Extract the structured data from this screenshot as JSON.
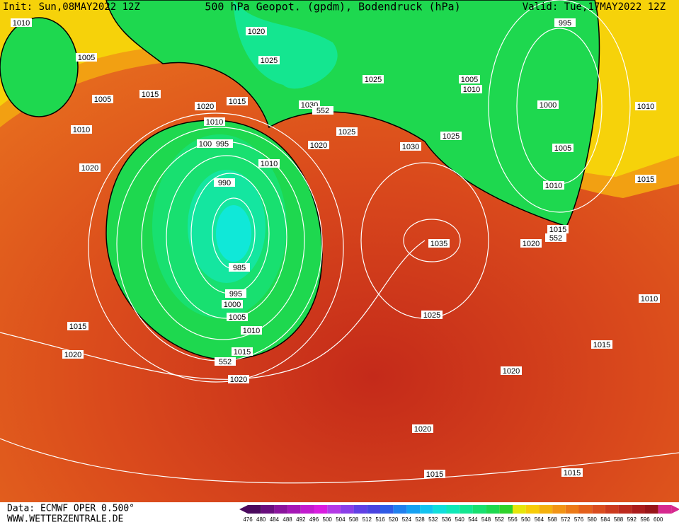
{
  "header": {
    "init": "Init: Sun,08MAY2022 12Z",
    "title": "500 hPa Geopot. (gpdm), Bodendruck (hPa)",
    "valid": "Valid: Tue,17MAY2022 12Z"
  },
  "isobar_labels": [
    "1010",
    "1005",
    "1005",
    "1015",
    "1010",
    "1020",
    "1020",
    "1025",
    "1015",
    "1020",
    "1010",
    "1000",
    "995",
    "1010",
    "990",
    "985",
    "995",
    "1000",
    "1005",
    "1010",
    "1015",
    "552",
    "1020",
    "1030",
    "552",
    "1025",
    "1020",
    "1025",
    "1030",
    "1025",
    "1005",
    "1010",
    "1000",
    "1005",
    "1010",
    "995",
    "1010",
    "1015",
    "1015",
    "552",
    "1020",
    "1035",
    "1025",
    "1010",
    "1015",
    "1020",
    "1020",
    "1015",
    "1015",
    "1015",
    "1020"
  ],
  "legend": {
    "labels": [
      476,
      480,
      484,
      488,
      492,
      496,
      500,
      504,
      508,
      512,
      516,
      520,
      524,
      528,
      532,
      536,
      540,
      544,
      548,
      552,
      556,
      560,
      564,
      568,
      572,
      576,
      580,
      584,
      588,
      592,
      596,
      600
    ],
    "colors": [
      "#4b0a5e",
      "#6a0f7e",
      "#8a149c",
      "#a517b5",
      "#c21bce",
      "#d91de0",
      "#b43ae6",
      "#8a3fe8",
      "#6040e5",
      "#4a44e0",
      "#2f5be6",
      "#2080ee",
      "#16a1f2",
      "#12c3f0",
      "#10dedc",
      "#10e8b8",
      "#14e690",
      "#18e070",
      "#1ed84f",
      "#2fd22a",
      "#e6e60a",
      "#f7cc08",
      "#f4b00c",
      "#f29414",
      "#ec7a18",
      "#e4601c",
      "#da4c1e",
      "#cc3a1e",
      "#bd2a1e",
      "#ab1c1c",
      "#981418",
      "#d6288e"
    ]
  },
  "footer": {
    "data": "Data: ECMWF OPER 0.500°",
    "url": "WWW.WETTERZENTRALE.DE"
  }
}
